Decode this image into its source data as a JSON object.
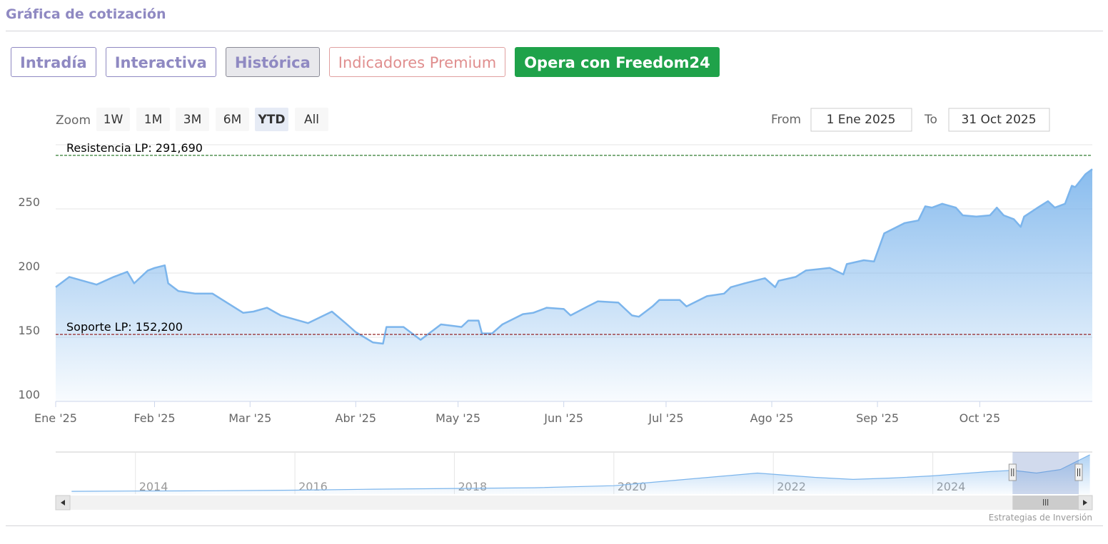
{
  "header": {
    "title": "Gráfica de cotización"
  },
  "tabs": [
    "Intradía",
    "Interactiva",
    "Histórica",
    "Indicadores Premium"
  ],
  "active_tab": 2,
  "premium_tab": 3,
  "cta": "Opera con Freedom24",
  "range_selector": {
    "zoom_label": "Zoom",
    "buttons": [
      "1W",
      "1M",
      "3M",
      "6M",
      "YTD",
      "All"
    ],
    "selected": 4,
    "from_label": "From",
    "from": "1 Ene 2025",
    "to_label": "To",
    "to": "31 Oct 2025"
  },
  "chart_data": {
    "type": "area",
    "color": "#7cb5ec",
    "x": [
      2,
      6,
      14,
      19,
      23,
      25,
      29,
      31,
      34,
      35,
      38,
      43,
      48,
      51,
      57,
      60,
      64,
      68,
      72,
      76,
      83,
      87,
      90,
      95,
      98,
      99,
      104,
      109,
      115,
      121,
      123,
      126,
      127,
      130,
      133,
      139,
      142,
      146,
      151,
      153,
      158,
      161,
      167,
      171,
      173,
      177,
      179,
      185,
      187,
      193,
      198,
      200,
      204,
      210,
      213,
      214,
      219,
      222,
      229,
      233,
      234,
      239,
      242,
      245,
      248,
      251,
      255,
      257,
      259,
      262,
      266,
      268,
      272,
      276,
      278,
      280,
      283,
      285,
      286,
      290,
      293,
      295,
      298,
      300,
      301,
      304,
      306
    ],
    "values": [
      189,
      197,
      191,
      197,
      201,
      192,
      202,
      204,
      206,
      192,
      186,
      184,
      184,
      179,
      169,
      170,
      173,
      167,
      164,
      161,
      170,
      161,
      154,
      146,
      145,
      158,
      158,
      148,
      160,
      158,
      163,
      163,
      153,
      153,
      160,
      168,
      169,
      173,
      172,
      167,
      174,
      178,
      177,
      167,
      166,
      174,
      179,
      179,
      174,
      182,
      184,
      189,
      192,
      196,
      189,
      194,
      197,
      202,
      204,
      199,
      207,
      210,
      209,
      231,
      235,
      239,
      241,
      252,
      251,
      254,
      251,
      245,
      244,
      245,
      251,
      245,
      242,
      236,
      244,
      251,
      256,
      251,
      254,
      268,
      267,
      277,
      281
    ],
    "xlim": [
      2,
      306
    ],
    "xticks": [
      {
        "value": 0,
        "label": "Ene '25"
      },
      {
        "value": 31,
        "label": "Feb '25"
      },
      {
        "value": 59,
        "label": "Mar '25"
      },
      {
        "value": 90,
        "label": "Abr '25"
      },
      {
        "value": 120,
        "label": "May '25"
      },
      {
        "value": 151,
        "label": "Jun '25"
      },
      {
        "value": 181,
        "label": "Jul '25"
      },
      {
        "value": 212,
        "label": "Ago '25"
      },
      {
        "value": 243,
        "label": "Sep '25"
      },
      {
        "value": 273,
        "label": "Oct '25"
      }
    ],
    "ylim": [
      100,
      300
    ],
    "yticks": [
      100,
      150,
      200,
      250
    ],
    "grid": true,
    "plot_lines": [
      {
        "value": 291.69,
        "label": "Resistencia LP: 291,690",
        "color": "#1a6e1a"
      },
      {
        "value": 152.2,
        "label": "Soporte LP: 152,200",
        "color": "#8b1010"
      }
    ]
  },
  "navigator": {
    "x": [
      2013.2,
      2014,
      2015,
      2016,
      2017,
      2018,
      2019,
      2020,
      2021,
      2021.8,
      2022.5,
      2023,
      2023.5,
      2024,
      2024.7,
      2025,
      2025.3,
      2025.6,
      2025.97
    ],
    "values": [
      20,
      22,
      24,
      28,
      35,
      40,
      45,
      60,
      110,
      150,
      120,
      105,
      115,
      130,
      160,
      170,
      150,
      175,
      280
    ],
    "xlim": [
      2013,
      2026
    ],
    "ylim": [
      0,
      300
    ],
    "xticks": [
      2014,
      2016,
      2018,
      2020,
      2022,
      2024
    ],
    "range": [
      2025,
      2025.83
    ]
  },
  "credits": "Estrategias de Inversión"
}
